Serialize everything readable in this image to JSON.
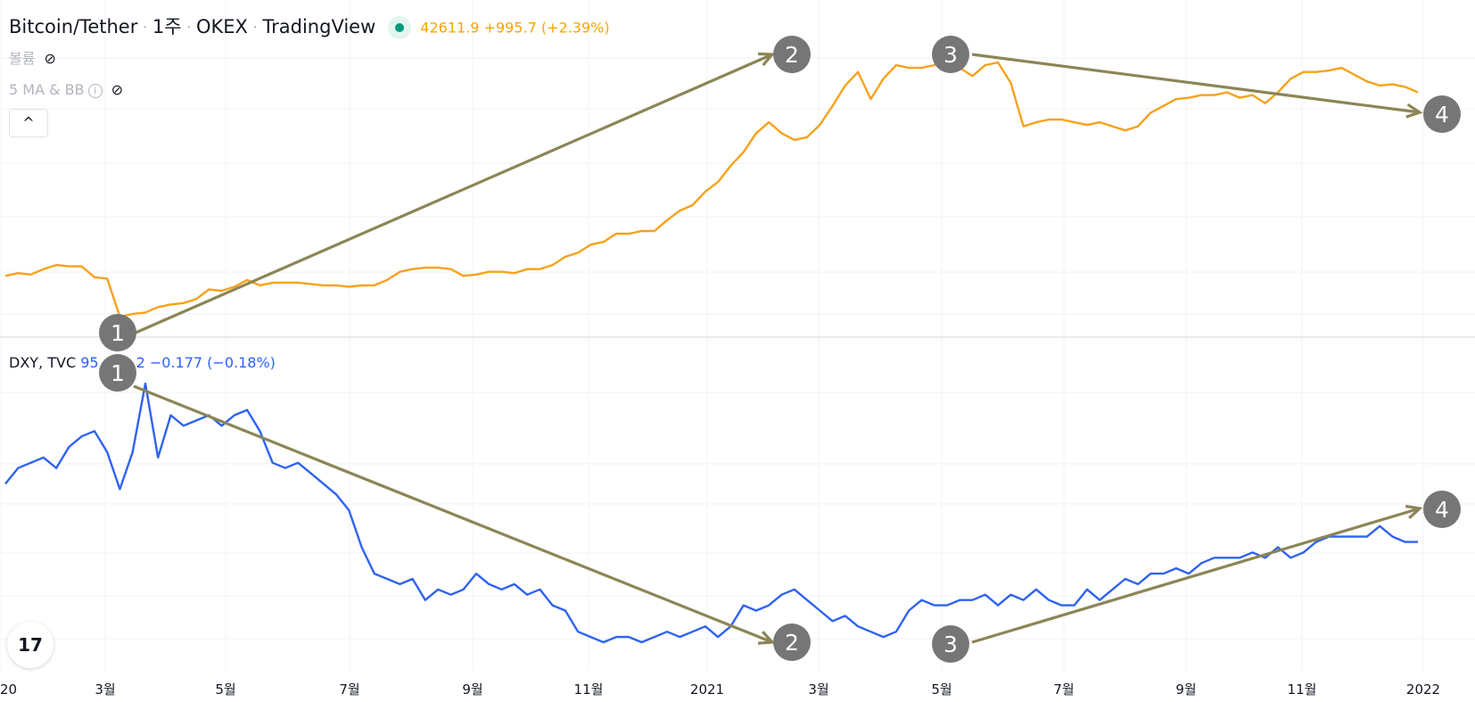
{
  "header": {
    "symbol": "Bitcoin/Tether",
    "interval": "1주",
    "exchange": "OKEX",
    "source": "TradingView",
    "price": "42611.9",
    "change": "+995.7",
    "change_pct": "(+2.39%)",
    "volume_label": "볼륨",
    "ma_bb_label": "5 MA & BB",
    "info_glyph": "i",
    "collapse_glyph": "^"
  },
  "lower_pane": {
    "symbol": "DXY, TVC",
    "value_partial": "95",
    "value_tail": "2",
    "change": "−0.177",
    "change_pct": "(−0.18%)"
  },
  "logo_text": "17",
  "colors": {
    "btc_line": "#f7a21b",
    "dxy_line": "#2f63f0",
    "arrow": "#8c8556",
    "marker": "#767676",
    "grid": "#f0f3fa"
  },
  "chart_data": [
    {
      "type": "line",
      "series": [
        {
          "name": "Bitcoin/Tether",
          "values": [
            45,
            47,
            46,
            50,
            53,
            52,
            52,
            44,
            43,
            15,
            17,
            18,
            22,
            24,
            25,
            28,
            35,
            34,
            37,
            42,
            38,
            40,
            40,
            40,
            39,
            38,
            38,
            37,
            38,
            38,
            42,
            48,
            50,
            51,
            51,
            50,
            45,
            46,
            48,
            48,
            47,
            50,
            50,
            53,
            59,
            62,
            68,
            70,
            76,
            76,
            78,
            78,
            86,
            93,
            97,
            107,
            114,
            126,
            136,
            150,
            158,
            150,
            145,
            147,
            156,
            170,
            185,
            195,
            175,
            190,
            200,
            198,
            198,
            200,
            202,
            198,
            192,
            200,
            202,
            187,
            155,
            158,
            160,
            160,
            158,
            156,
            158,
            155,
            152,
            155,
            165,
            170,
            175,
            176,
            178,
            178,
            180,
            176,
            178,
            172,
            180,
            190,
            195,
            195,
            196,
            198,
            193,
            188,
            185,
            186,
            184,
            180
          ]
        }
      ],
      "x_tick_labels": [
        "20",
        "3월",
        "5월",
        "7월",
        "9월",
        "11월",
        "2021",
        "3월",
        "5월",
        "7월",
        "9월",
        "11월",
        "2022"
      ],
      "annotations": [
        "1",
        "2",
        "3",
        "4"
      ]
    },
    {
      "type": "line",
      "series": [
        {
          "name": "DXY, TVC",
          "values": [
            98.5,
            98.8,
            98.9,
            99.0,
            98.8,
            99.2,
            99.4,
            99.5,
            99.1,
            98.4,
            99.1,
            100.4,
            99.0,
            99.8,
            99.6,
            99.7,
            99.8,
            99.6,
            99.8,
            99.9,
            99.5,
            98.9,
            98.8,
            98.9,
            98.7,
            98.5,
            98.3,
            98.0,
            97.3,
            96.8,
            96.7,
            96.6,
            96.7,
            96.3,
            96.5,
            96.4,
            96.5,
            96.8,
            96.6,
            96.5,
            96.6,
            96.4,
            96.5,
            96.2,
            96.1,
            95.7,
            95.6,
            95.5,
            95.6,
            95.6,
            95.5,
            95.6,
            95.7,
            95.6,
            95.7,
            95.8,
            95.6,
            95.8,
            96.2,
            96.1,
            96.2,
            96.4,
            96.5,
            96.3,
            96.1,
            95.9,
            96.0,
            95.8,
            95.7,
            95.6,
            95.7,
            96.1,
            96.3,
            96.2,
            96.2,
            96.3,
            96.3,
            96.4,
            96.2,
            96.4,
            96.3,
            96.5,
            96.3,
            96.2,
            96.2,
            96.5,
            96.3,
            96.5,
            96.7,
            96.6,
            96.8,
            96.8,
            96.9,
            96.8,
            97.0,
            97.1,
            97.1,
            97.1,
            97.2,
            97.1,
            97.3,
            97.1,
            97.2,
            97.4,
            97.5,
            97.5,
            97.5,
            97.5,
            97.7,
            97.5,
            97.4,
            97.4
          ]
        }
      ],
      "annotations": [
        "1",
        "2",
        "3",
        "4"
      ]
    }
  ]
}
